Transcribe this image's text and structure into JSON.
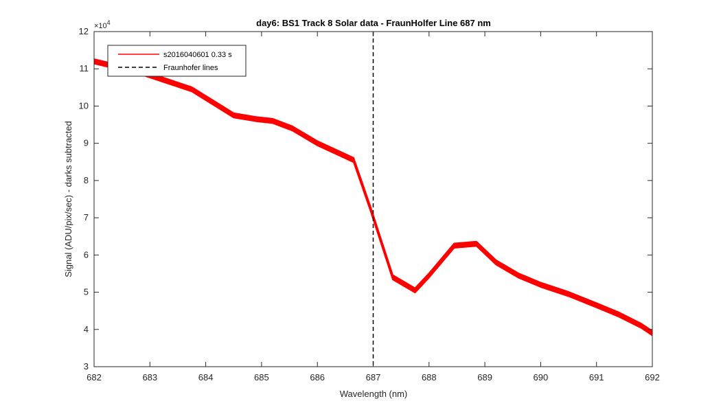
{
  "chart_data": {
    "type": "line",
    "title": "day6: BS1  Track 8 Solar data - FraunHolfer Line 687 nm",
    "xlabel": "Wavelength (nm)",
    "ylabel": "Signal (ADU/pix/sec) - darks subtracted",
    "y_exponent_label": "×10",
    "y_exponent_power": "4",
    "xlim": [
      682,
      692
    ],
    "ylim": [
      3,
      12
    ],
    "xticks": [
      "682",
      "683",
      "684",
      "685",
      "686",
      "687",
      "688",
      "689",
      "690",
      "691",
      "692"
    ],
    "yticks": [
      "3",
      "4",
      "5",
      "6",
      "7",
      "8",
      "9",
      "10",
      "11",
      "12"
    ],
    "grid": false,
    "legend_position": "top-left",
    "colors": {
      "series": "#ff0000",
      "fraunhofer": "#000000",
      "axes": "#262626"
    },
    "series": [
      {
        "name": "s2016040601 0.33 s",
        "x": [
          682.0,
          682.85,
          683.75,
          684.5,
          684.9,
          685.2,
          685.55,
          686.0,
          686.65,
          686.95,
          687.35,
          687.75,
          688.0,
          688.45,
          688.85,
          689.2,
          689.6,
          690.0,
          690.5,
          691.0,
          691.4,
          691.8,
          692.0
        ],
        "y": [
          11.2,
          10.9,
          10.45,
          9.75,
          9.65,
          9.6,
          9.4,
          9.0,
          8.55,
          7.25,
          5.4,
          5.05,
          5.45,
          6.25,
          6.3,
          5.8,
          5.45,
          5.2,
          4.95,
          4.65,
          4.4,
          4.1,
          3.9
        ],
        "band_offsets": [
          -0.06,
          -0.03,
          0,
          0.03,
          0.06
        ]
      }
    ],
    "vlines": [
      {
        "name": "Fraunhofer lines",
        "x": 687,
        "style": "dashed"
      }
    ]
  }
}
